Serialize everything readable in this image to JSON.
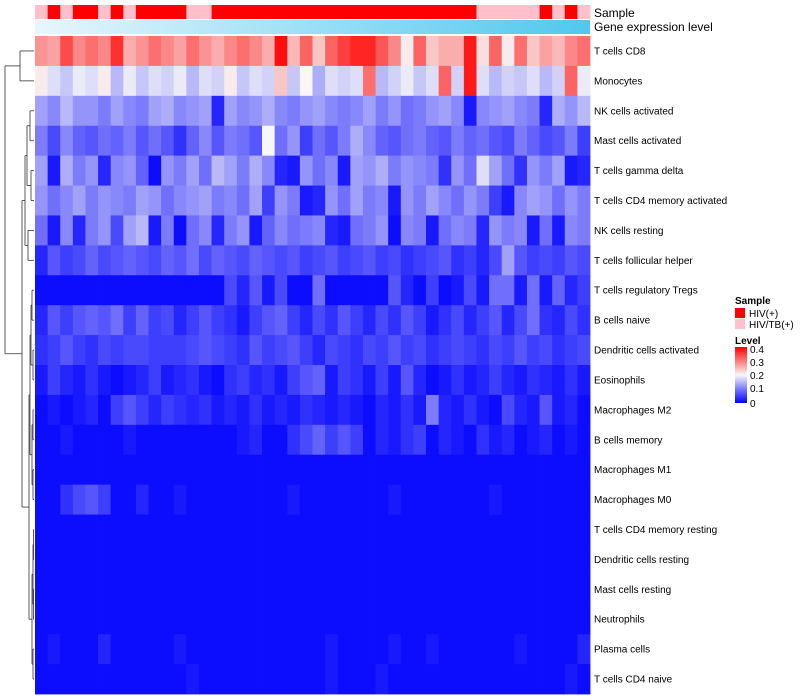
{
  "chart_data": {
    "type": "heatmap",
    "title": "",
    "annotation_tracks": [
      "Sample",
      "Gene expression level"
    ],
    "legend": {
      "sample_title": "Sample",
      "sample_items": [
        {
          "label": "HIV(+)",
          "color": "#FF0000"
        },
        {
          "label": "HIV/TB(+)",
          "color": "#FFC0CB"
        }
      ],
      "level_title": "Level",
      "level_ticks": [
        "0.4",
        "0.3",
        "0.2",
        "0.1",
        "0"
      ]
    },
    "color_scale": {
      "low": "#0000FF",
      "mid": "#F7F7F7",
      "high": "#FF0000",
      "min": 0,
      "mid_value": 0.2,
      "max": 0.4
    },
    "gene_level_gradient": {
      "from": "#E8F6FC",
      "to": "#4FC8EE"
    },
    "n_samples": 44,
    "sample_groups": [
      "HIV/TB(+)",
      "HIV(+)",
      "HIV/TB(+)",
      "HIV(+)",
      "HIV(+)",
      "HIV/TB(+)",
      "HIV(+)",
      "HIV/TB(+)",
      "HIV(+)",
      "HIV(+)",
      "HIV(+)",
      "HIV(+)",
      "HIV/TB(+)",
      "HIV/TB(+)",
      "HIV(+)",
      "HIV(+)",
      "HIV(+)",
      "HIV(+)",
      "HIV(+)",
      "HIV(+)",
      "HIV(+)",
      "HIV(+)",
      "HIV(+)",
      "HIV(+)",
      "HIV(+)",
      "HIV(+)",
      "HIV(+)",
      "HIV(+)",
      "HIV(+)",
      "HIV(+)",
      "HIV(+)",
      "HIV(+)",
      "HIV(+)",
      "HIV(+)",
      "HIV(+)",
      "HIV/TB(+)",
      "HIV/TB(+)",
      "HIV/TB(+)",
      "HIV/TB(+)",
      "HIV/TB(+)",
      "HIV(+)",
      "HIV/TB(+)",
      "HIV(+)",
      "HIV/TB(+)"
    ],
    "rows": [
      {
        "name": "T cells CD8",
        "values": [
          0.28,
          0.27,
          0.34,
          0.29,
          0.31,
          0.29,
          0.36,
          0.26,
          0.28,
          0.31,
          0.29,
          0.27,
          0.31,
          0.28,
          0.26,
          0.29,
          0.31,
          0.29,
          0.26,
          0.39,
          0.25,
          0.32,
          0.24,
          0.32,
          0.35,
          0.37,
          0.37,
          0.33,
          0.29,
          0.21,
          0.32,
          0.24,
          0.26,
          0.26,
          0.38,
          0.22,
          0.32,
          0.21,
          0.31,
          0.24,
          0.27,
          0.25,
          0.29,
          0.31
        ]
      },
      {
        "name": "Monocytes",
        "values": [
          0.21,
          0.18,
          0.16,
          0.19,
          0.18,
          0.21,
          0.15,
          0.19,
          0.16,
          0.18,
          0.17,
          0.19,
          0.15,
          0.18,
          0.17,
          0.21,
          0.16,
          0.18,
          0.17,
          0.24,
          0.16,
          0.2,
          0.14,
          0.18,
          0.17,
          0.18,
          0.31,
          0.15,
          0.17,
          0.19,
          0.16,
          0.18,
          0.32,
          0.17,
          0.38,
          0.18,
          0.15,
          0.17,
          0.16,
          0.18,
          0.15,
          0.17,
          0.32,
          0.19
        ]
      },
      {
        "name": "NK cells activated",
        "values": [
          0.13,
          0.11,
          0.15,
          0.12,
          0.12,
          0.1,
          0.13,
          0.11,
          0.1,
          0.13,
          0.14,
          0.11,
          0.12,
          0.13,
          0.03,
          0.13,
          0.11,
          0.12,
          0.14,
          0.11,
          0.1,
          0.12,
          0.13,
          0.11,
          0.1,
          0.11,
          0.13,
          0.1,
          0.12,
          0.09,
          0.1,
          0.12,
          0.13,
          0.11,
          0.02,
          0.11,
          0.12,
          0.13,
          0.11,
          0.1,
          0.03,
          0.14,
          0.12,
          0.15
        ]
      },
      {
        "name": "Mast cells activated",
        "values": [
          0.1,
          0.06,
          0.11,
          0.08,
          0.07,
          0.09,
          0.08,
          0.1,
          0.07,
          0.09,
          0.07,
          0.04,
          0.08,
          0.11,
          0.07,
          0.1,
          0.09,
          0.07,
          0.2,
          0.09,
          0.12,
          0.05,
          0.09,
          0.07,
          0.1,
          0.14,
          0.11,
          0.08,
          0.07,
          0.09,
          0.1,
          0.08,
          0.07,
          0.1,
          0.08,
          0.09,
          0.07,
          0.06,
          0.1,
          0.08,
          0.06,
          0.07,
          0.1,
          0.05
        ]
      },
      {
        "name": "T cells gamma delta",
        "values": [
          0.13,
          0.02,
          0.14,
          0.1,
          0.12,
          0.03,
          0.11,
          0.12,
          0.08,
          0.01,
          0.12,
          0.1,
          0.13,
          0.09,
          0.15,
          0.13,
          0.1,
          0.14,
          0.11,
          0.03,
          0.02,
          0.12,
          0.09,
          0.11,
          0.02,
          0.13,
          0.12,
          0.14,
          0.1,
          0.12,
          0.11,
          0.1,
          0.04,
          0.12,
          0.09,
          0.18,
          0.13,
          0.09,
          0.04,
          0.12,
          0.1,
          0.13,
          0.02,
          0.03
        ]
      },
      {
        "name": "T cells CD4 memory activated",
        "values": [
          0.12,
          0.09,
          0.11,
          0.13,
          0.1,
          0.12,
          0.11,
          0.1,
          0.13,
          0.12,
          0.09,
          0.11,
          0.12,
          0.13,
          0.1,
          0.11,
          0.09,
          0.13,
          0.05,
          0.12,
          0.1,
          0.02,
          0.03,
          0.12,
          0.09,
          0.13,
          0.1,
          0.11,
          0.02,
          0.12,
          0.1,
          0.13,
          0.11,
          0.09,
          0.12,
          0.1,
          0.05,
          0.02,
          0.11,
          0.13,
          0.12,
          0.09,
          0.12,
          0.1
        ]
      },
      {
        "name": "NK cells resting",
        "values": [
          0.09,
          0.02,
          0.11,
          0.03,
          0.1,
          0.12,
          0.06,
          0.13,
          0.15,
          0.02,
          0.1,
          0.01,
          0.09,
          0.11,
          0.03,
          0.1,
          0.12,
          0.02,
          0.08,
          0.11,
          0.09,
          0.1,
          0.11,
          0.03,
          0.02,
          0.09,
          0.1,
          0.12,
          0.01,
          0.11,
          0.1,
          0.02,
          0.09,
          0.11,
          0.1,
          0.03,
          0.12,
          0.1,
          0.11,
          0.02,
          0.09,
          0.02,
          0.11,
          0.1
        ]
      },
      {
        "name": "T cells follicular helper",
        "values": [
          0.03,
          0.07,
          0.05,
          0.06,
          0.08,
          0.06,
          0.07,
          0.08,
          0.07,
          0.06,
          0.08,
          0.07,
          0.09,
          0.06,
          0.08,
          0.07,
          0.06,
          0.08,
          0.07,
          0.06,
          0.07,
          0.05,
          0.06,
          0.07,
          0.05,
          0.06,
          0.07,
          0.05,
          0.06,
          0.04,
          0.05,
          0.06,
          0.07,
          0.04,
          0.05,
          0.03,
          0.06,
          0.13,
          0.07,
          0.05,
          0.06,
          0.05,
          0.07,
          0.06
        ]
      },
      {
        "name": "T cells regulatory  Tregs",
        "values": [
          0.01,
          0.01,
          0.01,
          0.01,
          0.01,
          0.01,
          0.01,
          0.01,
          0.01,
          0.01,
          0.01,
          0.01,
          0.01,
          0.01,
          0.01,
          0.06,
          0.03,
          0.07,
          0.02,
          0.06,
          0.01,
          0.01,
          0.09,
          0.01,
          0.01,
          0.01,
          0.01,
          0.01,
          0.07,
          0.03,
          0.01,
          0.05,
          0.01,
          0.02,
          0.06,
          0.02,
          0.09,
          0.09,
          0.02,
          0.09,
          0.02,
          0.08,
          0.03,
          0.05
        ]
      },
      {
        "name": "B cells naive",
        "values": [
          0.03,
          0.07,
          0.05,
          0.07,
          0.08,
          0.07,
          0.09,
          0.05,
          0.08,
          0.05,
          0.06,
          0.03,
          0.05,
          0.07,
          0.05,
          0.04,
          0.02,
          0.05,
          0.07,
          0.08,
          0.05,
          0.03,
          0.06,
          0.04,
          0.07,
          0.05,
          0.03,
          0.06,
          0.04,
          0.07,
          0.05,
          0.02,
          0.04,
          0.06,
          0.03,
          0.05,
          0.07,
          0.03,
          0.06,
          0.09,
          0.04,
          0.03,
          0.06,
          0.04
        ]
      },
      {
        "name": "Dendritic cells activated",
        "values": [
          0.04,
          0.05,
          0.07,
          0.05,
          0.04,
          0.06,
          0.05,
          0.06,
          0.06,
          0.05,
          0.05,
          0.05,
          0.06,
          0.07,
          0.06,
          0.05,
          0.04,
          0.07,
          0.05,
          0.06,
          0.07,
          0.05,
          0.03,
          0.06,
          0.05,
          0.04,
          0.06,
          0.05,
          0.07,
          0.05,
          0.06,
          0.04,
          0.05,
          0.06,
          0.05,
          0.04,
          0.06,
          0.05,
          0.07,
          0.05,
          0.06,
          0.04,
          0.05,
          0.06
        ]
      },
      {
        "name": "Eosinophils",
        "values": [
          0.02,
          0.05,
          0.03,
          0.02,
          0.04,
          0.02,
          0.01,
          0.02,
          0.03,
          0.05,
          0.02,
          0.03,
          0.04,
          0.02,
          0.01,
          0.04,
          0.05,
          0.03,
          0.04,
          0.02,
          0.05,
          0.07,
          0.08,
          0.02,
          0.05,
          0.04,
          0.02,
          0.05,
          0.02,
          0.07,
          0.03,
          0.01,
          0.02,
          0.04,
          0.02,
          0.03,
          0.05,
          0.03,
          0.02,
          0.04,
          0.03,
          0.02,
          0.04,
          0.02
        ]
      },
      {
        "name": "Macrophages M2",
        "values": [
          0.01,
          0.02,
          0.01,
          0.02,
          0.03,
          0.01,
          0.05,
          0.07,
          0.05,
          0.03,
          0.05,
          0.04,
          0.03,
          0.04,
          0.02,
          0.03,
          0.02,
          0.04,
          0.02,
          0.03,
          0.02,
          0.04,
          0.03,
          0.02,
          0.03,
          0.02,
          0.01,
          0.03,
          0.02,
          0.04,
          0.02,
          0.1,
          0.03,
          0.02,
          0.04,
          0.02,
          0.01,
          0.06,
          0.03,
          0.02,
          0.07,
          0.02,
          0.03,
          0.01
        ]
      },
      {
        "name": "B cells memory",
        "values": [
          0.01,
          0.01,
          0.02,
          0.01,
          0.01,
          0.01,
          0.01,
          0.02,
          0.01,
          0.01,
          0.01,
          0.01,
          0.01,
          0.01,
          0.01,
          0.01,
          0.02,
          0.03,
          0.01,
          0.01,
          0.04,
          0.06,
          0.08,
          0.05,
          0.07,
          0.05,
          0.01,
          0.03,
          0.02,
          0.04,
          0.05,
          0.01,
          0.03,
          0.02,
          0.01,
          0.04,
          0.02,
          0.03,
          0.01,
          0.02,
          0.03,
          0.01,
          0.02,
          0.01
        ]
      },
      {
        "name": "Macrophages M1",
        "values": [
          0.01,
          0.01,
          0.01,
          0.01,
          0.01,
          0.01,
          0.01,
          0.01,
          0.01,
          0.01,
          0.01,
          0.01,
          0.01,
          0.01,
          0.01,
          0.01,
          0.01,
          0.01,
          0.01,
          0.01,
          0.01,
          0.01,
          0.01,
          0.01,
          0.01,
          0.01,
          0.01,
          0.01,
          0.01,
          0.01,
          0.01,
          0.01,
          0.01,
          0.01,
          0.01,
          0.01,
          0.01,
          0.01,
          0.01,
          0.01,
          0.01,
          0.01,
          0.01,
          0.01
        ]
      },
      {
        "name": "Macrophages M0",
        "values": [
          0.01,
          0.01,
          0.04,
          0.06,
          0.07,
          0.05,
          0.01,
          0.01,
          0.03,
          0.01,
          0.01,
          0.02,
          0.01,
          0.01,
          0.01,
          0.01,
          0.01,
          0.01,
          0.01,
          0.01,
          0.02,
          0.01,
          0.01,
          0.01,
          0.01,
          0.01,
          0.01,
          0.01,
          0.02,
          0.01,
          0.01,
          0.01,
          0.01,
          0.01,
          0.01,
          0.01,
          0.02,
          0.01,
          0.01,
          0.01,
          0.01,
          0.01,
          0.01,
          0.01
        ]
      },
      {
        "name": "T cells CD4 memory resting",
        "values": [
          0.01,
          0.01,
          0.01,
          0.01,
          0.01,
          0.01,
          0.01,
          0.01,
          0.01,
          0.01,
          0.01,
          0.01,
          0.01,
          0.01,
          0.01,
          0.01,
          0.01,
          0.01,
          0.01,
          0.01,
          0.01,
          0.01,
          0.01,
          0.01,
          0.01,
          0.01,
          0.01,
          0.01,
          0.01,
          0.01,
          0.01,
          0.01,
          0.01,
          0.01,
          0.01,
          0.01,
          0.01,
          0.01,
          0.01,
          0.01,
          0.01,
          0.01,
          0.01,
          0.01
        ]
      },
      {
        "name": "Dendritic cells resting",
        "values": [
          0.01,
          0.01,
          0.01,
          0.01,
          0.01,
          0.01,
          0.01,
          0.01,
          0.01,
          0.01,
          0.01,
          0.01,
          0.01,
          0.01,
          0.01,
          0.01,
          0.01,
          0.01,
          0.01,
          0.01,
          0.01,
          0.01,
          0.01,
          0.01,
          0.01,
          0.01,
          0.01,
          0.01,
          0.01,
          0.01,
          0.01,
          0.01,
          0.01,
          0.01,
          0.01,
          0.01,
          0.01,
          0.01,
          0.01,
          0.01,
          0.01,
          0.01,
          0.01,
          0.01
        ]
      },
      {
        "name": "Mast cells resting",
        "values": [
          0.01,
          0.01,
          0.01,
          0.01,
          0.01,
          0.01,
          0.01,
          0.01,
          0.01,
          0.01,
          0.01,
          0.01,
          0.01,
          0.01,
          0.01,
          0.01,
          0.01,
          0.01,
          0.01,
          0.01,
          0.01,
          0.01,
          0.01,
          0.01,
          0.01,
          0.01,
          0.01,
          0.01,
          0.01,
          0.01,
          0.01,
          0.01,
          0.01,
          0.01,
          0.01,
          0.01,
          0.01,
          0.01,
          0.01,
          0.01,
          0.01,
          0.01,
          0.01,
          0.01
        ]
      },
      {
        "name": "Neutrophils",
        "values": [
          0.01,
          0.01,
          0.01,
          0.01,
          0.01,
          0.01,
          0.01,
          0.01,
          0.01,
          0.01,
          0.01,
          0.01,
          0.01,
          0.01,
          0.01,
          0.01,
          0.01,
          0.01,
          0.01,
          0.01,
          0.01,
          0.01,
          0.01,
          0.01,
          0.01,
          0.01,
          0.01,
          0.01,
          0.01,
          0.01,
          0.01,
          0.01,
          0.01,
          0.01,
          0.01,
          0.01,
          0.01,
          0.01,
          0.01,
          0.01,
          0.01,
          0.01,
          0.01,
          0.01
        ]
      },
      {
        "name": "Plasma cells",
        "values": [
          0.01,
          0.02,
          0.01,
          0.01,
          0.01,
          0.03,
          0.01,
          0.01,
          0.01,
          0.01,
          0.01,
          0.02,
          0.01,
          0.01,
          0.01,
          0.01,
          0.01,
          0.01,
          0.01,
          0.01,
          0.01,
          0.01,
          0.01,
          0.02,
          0.01,
          0.01,
          0.01,
          0.01,
          0.02,
          0.01,
          0.01,
          0.02,
          0.01,
          0.01,
          0.01,
          0.01,
          0.01,
          0.01,
          0.02,
          0.01,
          0.01,
          0.01,
          0.01,
          0.03
        ]
      },
      {
        "name": "T cells CD4 naive",
        "values": [
          0.01,
          0.01,
          0.01,
          0.01,
          0.01,
          0.01,
          0.01,
          0.01,
          0.01,
          0.01,
          0.01,
          0.01,
          0.02,
          0.01,
          0.01,
          0.01,
          0.01,
          0.01,
          0.01,
          0.01,
          0.01,
          0.01,
          0.01,
          0.02,
          0.01,
          0.01,
          0.01,
          0.02,
          0.01,
          0.01,
          0.01,
          0.01,
          0.01,
          0.01,
          0.01,
          0.01,
          0.01,
          0.01,
          0.01,
          0.01,
          0.01,
          0.01,
          0.02,
          0.01
        ]
      }
    ]
  }
}
